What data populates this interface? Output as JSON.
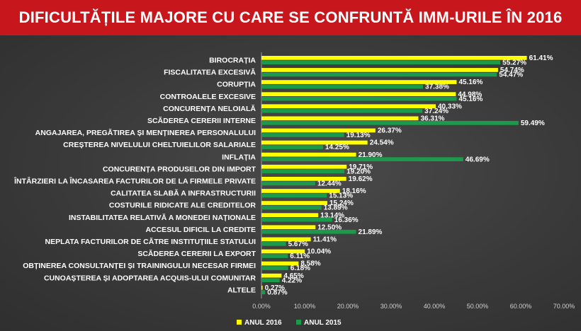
{
  "header": {
    "title": "DIFICULTĂȚILE MAJORE CU CARE SE CONFRUNTĂ IMM-URILE ÎN 2016"
  },
  "colors": {
    "title_bg": "#c8161d",
    "series_2016": "#ffff00",
    "series_2015": "#1a9a4a"
  },
  "chart_data": {
    "type": "bar",
    "orientation": "horizontal",
    "title": "DIFICULTĂȚILE MAJORE CU CARE SE CONFRUNTĂ IMM-URILE ÎN 2016",
    "categories": [
      "BIROCRAȚIA",
      "FISCALITATEA EXCESIVĂ",
      "CORUPȚIA",
      "CONTROALELE EXCESIVE",
      "CONCURENȚA NELOIALĂ",
      "SCĂDEREA CERERII INTERNE",
      "ANGAJAREA, PREGĂTIREA ȘI MENȚINEREA PERSONALULUI",
      "CREȘTEREA NIVELULUI CHELTUIELILOR SALARIALE",
      "INFLAȚIA",
      "CONCURENȚA PRODUSELOR DIN IMPORT",
      "ÎNTÂRZIERI LA ÎNCASAREA FACTURILOR DE LA FIRMELE PRIVATE",
      "CALITATEA SLABĂ A INFRASTRUCTURII",
      "COSTURILE RIDICATE ALE CREDITELOR",
      "INSTABILITATEA RELATIVĂ A MONEDEI NAȚIONALE",
      "ACCESUL DIFICIL LA CREDITE",
      "NEPLATA FACTURILOR DE CĂTRE INSTITUȚIILE STATULUI",
      "SCĂDEREA CERERII LA EXPORT",
      "OBȚINEREA CONSULTANȚEI ȘI TRAININGULUI NECESAR FIRMEI",
      "CUNOAȘTEREA ȘI ADOPTAREA ACQUIS-ULUI COMUNITAR",
      "ALTELE"
    ],
    "series": [
      {
        "name": "ANUL 2016",
        "values": [
          61.41,
          54.74,
          45.16,
          44.98,
          40.33,
          36.31,
          26.37,
          24.54,
          21.9,
          19.71,
          19.62,
          18.16,
          15.24,
          13.14,
          12.5,
          11.41,
          10.04,
          8.58,
          4.65,
          0.27
        ],
        "labels": [
          "61.41%",
          "54.74%",
          "45.16%",
          "44.98%",
          "40.33%",
          "36.31%",
          "26.37%",
          "24.54%",
          "21.90%",
          "19.71%",
          "19.62%",
          "18.16%",
          "15.24%",
          "13.14%",
          "12.50%",
          "11.41%",
          "10.04%",
          "8.58%",
          "4.65%",
          "0.27%"
        ]
      },
      {
        "name": "ANUL 2015",
        "values": [
          55.27,
          54.47,
          37.38,
          45.16,
          37.24,
          59.49,
          19.13,
          14.25,
          46.69,
          19.2,
          12.44,
          15.13,
          13.89,
          16.36,
          21.89,
          5.67,
          6.11,
          6.18,
          4.22,
          0.87
        ],
        "labels": [
          "55.27%",
          "54.47%",
          "37.38%",
          "45.16%",
          "37.24%",
          "59.49%",
          "19.13%",
          "14.25%",
          "46.69%",
          "19.20%",
          "12.44%",
          "15.13%",
          "13.89%",
          "16.36%",
          "21.89%",
          "5.67%",
          "6.11%",
          "6.18%",
          "4.22%",
          "0.87%"
        ]
      }
    ],
    "xlim": [
      0,
      70
    ],
    "xticks": [
      "0.00%",
      "10.00%",
      "20.00%",
      "30.00%",
      "40.00%",
      "50.00%",
      "60.00%",
      "70.00%"
    ],
    "legend_position": "bottom-center",
    "grid": false
  }
}
